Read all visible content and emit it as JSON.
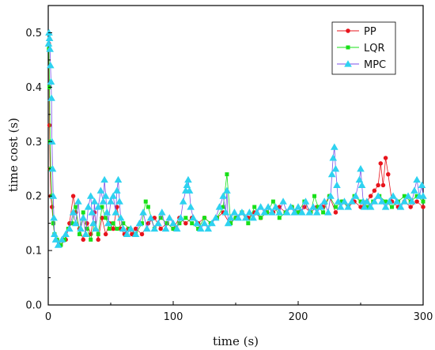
{
  "chart_data": {
    "type": "line",
    "title": "",
    "xlabel": "time (s)",
    "ylabel": "time cost (s)",
    "xlim": [
      0,
      300
    ],
    "ylim": [
      0,
      0.55
    ],
    "xticks": [
      0,
      100,
      200,
      300
    ],
    "xtick_labels": [
      "0",
      "100",
      "200",
      "300"
    ],
    "yticks": [
      0.0,
      0.1,
      0.2,
      0.3,
      0.4,
      0.5
    ],
    "ytick_labels": [
      "0.0",
      "0.1",
      "0.2",
      "0.3",
      "0.4",
      "0.5"
    ],
    "grid": false,
    "legend_position": "top-right",
    "series": [
      {
        "name": "PP",
        "color": "#e8141c",
        "marker": "circle",
        "x": [
          0.5,
          1,
          1.5,
          2,
          3,
          4,
          5,
          7,
          10,
          14,
          17,
          20,
          22,
          25,
          28,
          31,
          34,
          37,
          40,
          43,
          46,
          49,
          52,
          55,
          58,
          61,
          64,
          67,
          70,
          75,
          80,
          85,
          90,
          95,
          100,
          105,
          110,
          115,
          120,
          125,
          130,
          135,
          140,
          145,
          150,
          155,
          160,
          165,
          170,
          175,
          180,
          185,
          190,
          195,
          200,
          205,
          210,
          215,
          220,
          225,
          230,
          235,
          240,
          245,
          250,
          255,
          258,
          261,
          264,
          266,
          268,
          270,
          272,
          275,
          280,
          285,
          290,
          295,
          300
        ],
        "y": [
          0.48,
          0.33,
          0.25,
          0.2,
          0.18,
          0.15,
          0.13,
          0.12,
          0.11,
          0.12,
          0.15,
          0.2,
          0.17,
          0.14,
          0.12,
          0.15,
          0.13,
          0.17,
          0.12,
          0.16,
          0.13,
          0.15,
          0.14,
          0.18,
          0.14,
          0.13,
          0.14,
          0.13,
          0.14,
          0.13,
          0.15,
          0.16,
          0.14,
          0.15,
          0.14,
          0.16,
          0.15,
          0.16,
          0.15,
          0.16,
          0.15,
          0.16,
          0.17,
          0.15,
          0.16,
          0.17,
          0.16,
          0.17,
          0.16,
          0.17,
          0.17,
          0.18,
          0.17,
          0.18,
          0.17,
          0.18,
          0.17,
          0.18,
          0.18,
          0.2,
          0.17,
          0.19,
          0.18,
          0.19,
          0.18,
          0.19,
          0.2,
          0.21,
          0.22,
          0.26,
          0.22,
          0.27,
          0.24,
          0.19,
          0.18,
          0.19,
          0.18,
          0.19,
          0.18
        ]
      },
      {
        "name": "LQR",
        "color": "#18e018",
        "marker": "square",
        "x": [
          0.5,
          1,
          1.5,
          2,
          3,
          4,
          5,
          7,
          10,
          13,
          16,
          19,
          22,
          25,
          28,
          31,
          34,
          37,
          40,
          43,
          46,
          49,
          52,
          55,
          60,
          65,
          70,
          75,
          78,
          80,
          85,
          90,
          95,
          100,
          105,
          110,
          115,
          120,
          125,
          130,
          135,
          140,
          143,
          146,
          150,
          155,
          160,
          165,
          170,
          175,
          180,
          185,
          190,
          195,
          200,
          205,
          210,
          213,
          216,
          220,
          225,
          230,
          235,
          240,
          245,
          250,
          255,
          260,
          265,
          270,
          275,
          280,
          285,
          290,
          295,
          300
        ],
        "y": [
          0.47,
          0.4,
          0.3,
          0.25,
          0.2,
          0.15,
          0.13,
          0.12,
          0.11,
          0.12,
          0.14,
          0.15,
          0.18,
          0.13,
          0.17,
          0.14,
          0.12,
          0.15,
          0.13,
          0.18,
          0.16,
          0.14,
          0.15,
          0.14,
          0.15,
          0.14,
          0.13,
          0.15,
          0.19,
          0.18,
          0.14,
          0.16,
          0.15,
          0.14,
          0.15,
          0.16,
          0.15,
          0.14,
          0.16,
          0.15,
          0.16,
          0.18,
          0.24,
          0.15,
          0.16,
          0.17,
          0.15,
          0.18,
          0.16,
          0.17,
          0.19,
          0.16,
          0.17,
          0.18,
          0.17,
          0.19,
          0.17,
          0.2,
          0.18,
          0.17,
          0.2,
          0.18,
          0.19,
          0.18,
          0.2,
          0.19,
          0.18,
          0.19,
          0.2,
          0.19,
          0.18,
          0.19,
          0.2,
          0.19,
          0.2,
          0.19
        ]
      },
      {
        "name": "MPC",
        "color": "#7b52e8",
        "marker_color": "#2ed2f0",
        "marker": "triangle",
        "x": [
          0.3,
          0.6,
          1,
          1.4,
          1.8,
          2.2,
          2.6,
          3,
          3.5,
          4,
          4.5,
          5,
          6,
          8,
          11,
          14,
          17,
          20,
          22,
          24,
          26,
          28,
          30,
          32,
          34,
          35,
          36,
          37,
          38,
          40,
          42,
          44,
          45,
          46,
          47,
          48,
          50,
          52,
          54,
          55,
          56,
          57,
          58,
          60,
          63,
          66,
          70,
          73,
          76,
          79,
          82,
          85,
          88,
          91,
          94,
          97,
          100,
          103,
          106,
          108,
          110,
          111,
          112,
          113,
          114,
          116,
          119,
          122,
          125,
          128,
          131,
          134,
          137,
          140,
          142,
          143,
          144,
          146,
          149,
          152,
          155,
          158,
          161,
          164,
          167,
          170,
          173,
          176,
          179,
          182,
          185,
          188,
          191,
          194,
          197,
          200,
          203,
          206,
          209,
          212,
          215,
          218,
          221,
          224,
          226,
          227,
          228,
          229,
          230,
          231,
          232,
          234,
          237,
          240,
          243,
          246,
          249,
          250,
          251,
          252,
          253,
          255,
          258,
          261,
          264,
          267,
          270,
          273,
          276,
          279,
          282,
          285,
          288,
          291,
          293,
          295,
          297,
          299,
          300
        ],
        "y": [
          0.48,
          0.5,
          0.49,
          0.47,
          0.44,
          0.41,
          0.38,
          0.3,
          0.25,
          0.2,
          0.16,
          0.13,
          0.12,
          0.11,
          0.12,
          0.13,
          0.14,
          0.17,
          0.15,
          0.19,
          0.14,
          0.16,
          0.13,
          0.18,
          0.2,
          0.17,
          0.15,
          0.19,
          0.14,
          0.18,
          0.21,
          0.19,
          0.23,
          0.2,
          0.17,
          0.15,
          0.19,
          0.2,
          0.17,
          0.21,
          0.23,
          0.19,
          0.16,
          0.14,
          0.13,
          0.14,
          0.13,
          0.15,
          0.17,
          0.14,
          0.16,
          0.14,
          0.15,
          0.17,
          0.14,
          0.16,
          0.15,
          0.14,
          0.16,
          0.19,
          0.21,
          0.22,
          0.23,
          0.21,
          0.18,
          0.16,
          0.15,
          0.14,
          0.15,
          0.14,
          0.15,
          0.16,
          0.18,
          0.2,
          0.17,
          0.21,
          0.15,
          0.16,
          0.17,
          0.16,
          0.17,
          0.16,
          0.17,
          0.16,
          0.17,
          0.18,
          0.17,
          0.18,
          0.17,
          0.18,
          0.17,
          0.19,
          0.17,
          0.18,
          0.17,
          0.18,
          0.17,
          0.19,
          0.17,
          0.18,
          0.17,
          0.18,
          0.19,
          0.17,
          0.2,
          0.24,
          0.27,
          0.29,
          0.25,
          0.22,
          0.19,
          0.18,
          0.19,
          0.18,
          0.19,
          0.2,
          0.23,
          0.25,
          0.22,
          0.19,
          0.18,
          0.19,
          0.18,
          0.19,
          0.2,
          0.19,
          0.18,
          0.19,
          0.2,
          0.19,
          0.18,
          0.19,
          0.2,
          0.19,
          0.21,
          0.23,
          0.2,
          0.22,
          0.2
        ]
      }
    ]
  }
}
